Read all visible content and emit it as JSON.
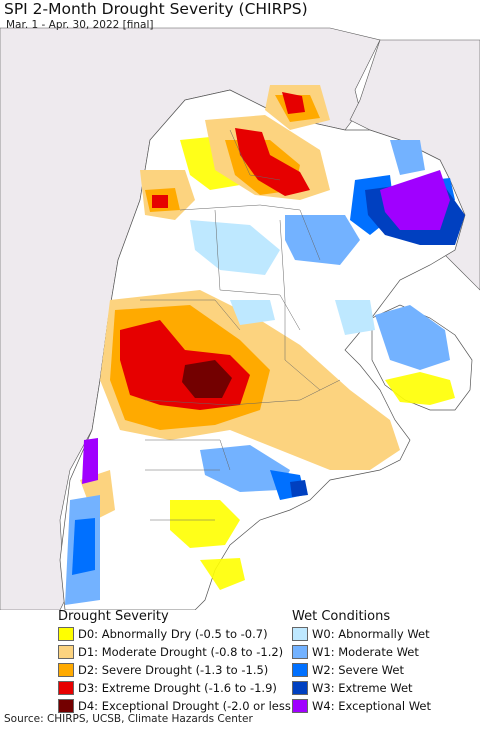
{
  "title": "SPI 2-Month Drought Severity (CHIRPS)",
  "subtitle": "Mar. 1 - Apr. 30, 2022 [final]",
  "source": "Source: CHIRPS, UCSB, Climate Hazards Center",
  "legend_drought": {
    "heading": "Drought Severity",
    "items": [
      {
        "label": "D0: Abnormally Dry (-0.5 to -0.7)",
        "color": "#ffff00"
      },
      {
        "label": "D1: Moderate Drought (-0.8 to -1.2)",
        "color": "#fcd37f"
      },
      {
        "label": "D2: Severe Drought (-1.3 to -1.5)",
        "color": "#ffaa00"
      },
      {
        "label": "D3: Extreme Drought (-1.6 to -1.9)",
        "color": "#e60000"
      },
      {
        "label": "D4: Exceptional Drought (-2.0 or less)",
        "color": "#730000"
      }
    ]
  },
  "legend_wet": {
    "heading": "Wet Conditions",
    "items": [
      {
        "label": "W0: Abnormally Wet",
        "color": "#bee8ff"
      },
      {
        "label": "W1: Moderate Wet",
        "color": "#73b2ff"
      },
      {
        "label": "W2: Severe Wet",
        "color": "#0070ff"
      },
      {
        "label": "W3: Extreme Wet",
        "color": "#0040c0"
      },
      {
        "label": "W4: Exceptional Wet",
        "color": "#a000ff"
      }
    ]
  },
  "colors": {
    "ocean": "#ffffff",
    "outside_land": "#eeeaee",
    "land_neutral": "#ffffff",
    "border": "#555555"
  }
}
